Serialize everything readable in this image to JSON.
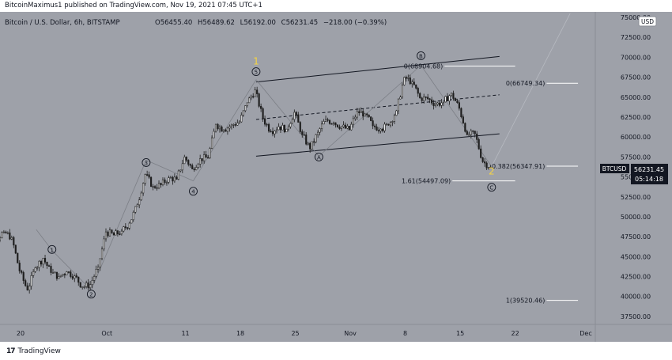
{
  "publish_note": "BitcoinMaximus1 published on TradingView.com, Nov 19, 2021 07:45 UTC+1",
  "footer": {
    "brand": "TradingView",
    "logo_mark": "17"
  },
  "symbol_header": {
    "title": "Bitcoin / U.S. Dollar, 6h, BITSTAMP",
    "open_label": "O",
    "open": "56455.40",
    "high_label": "H",
    "high": "56489.62",
    "low_label": "L",
    "low": "56192.00",
    "close_label": "C",
    "close": "56231.45",
    "change": "−218.00 (−0.39%)"
  },
  "price_axis": {
    "currency": "USD",
    "ticks": [
      "37500.00",
      "40000.00",
      "42500.00",
      "45000.00",
      "47500.00",
      "50000.00",
      "52500.00",
      "55000.00",
      "57500.00",
      "60000.00",
      "62500.00",
      "65000.00",
      "67500.00",
      "70000.00",
      "72500.00",
      "75000.00"
    ],
    "last_symbol": "BTCUSD",
    "last_price": "56231.45",
    "countdown": "05:14:18"
  },
  "time_axis": {
    "ticks": [
      "20",
      "Oct",
      "11",
      "18",
      "25",
      "Nov",
      "8",
      "15",
      "22",
      "Dec"
    ]
  },
  "fib_levels": [
    {
      "label": "0(68904.68)",
      "price": 68904.68
    },
    {
      "label": "0(66749.34)",
      "price": 66749.34
    },
    {
      "label": "0.382(56347.91)",
      "price": 56347.91
    },
    {
      "label": "1.61(54497.09)",
      "price": 54497.09
    },
    {
      "label": "1(39520.46)",
      "price": 39520.46
    }
  ],
  "wave_labels": [
    {
      "text": "1",
      "circled": true,
      "time": "Sep 24",
      "price": 45900
    },
    {
      "text": "2",
      "circled": true,
      "time": "Sep 29",
      "price": 40300
    },
    {
      "text": "3",
      "circled": true,
      "time": "Oct 6",
      "price": 56800
    },
    {
      "text": "4",
      "circled": true,
      "time": "Oct 12",
      "price": 53200
    },
    {
      "text": "5",
      "circled": true,
      "time": "Oct 20",
      "price": 68200
    },
    {
      "text": "A",
      "circled": true,
      "time": "Oct 28",
      "price": 57500
    },
    {
      "text": "B",
      "circled": true,
      "time": "Nov 10",
      "price": 70200
    },
    {
      "text": "C",
      "circled": true,
      "time": "Nov 19",
      "price": 53700
    },
    {
      "text": "1",
      "circled": false,
      "time": "Oct 20",
      "price": 69500,
      "color": "#f5d442"
    },
    {
      "text": "2",
      "circled": false,
      "time": "Nov 19",
      "price": 55700,
      "color": "#f5d442"
    }
  ],
  "colors": {
    "pane_bg": "#9ea1a9",
    "candle": "#1e1e1e",
    "text": "#131722",
    "highlight": "#f5d442"
  },
  "chart_data": {
    "type": "candlestick",
    "timeframe": "6h",
    "x_range": [
      "Sep 15, 2021",
      "Dec 3, 2021"
    ],
    "ylim": [
      36500,
      75700
    ],
    "grid": false,
    "legend": "none",
    "series": [
      {
        "kind": "ohlc",
        "points": [
          {
            "t": "Sep 15",
            "close": 48200
          },
          {
            "t": "Sep 16",
            "close": 47800
          },
          {
            "t": "Sep 17",
            "close": 47200
          },
          {
            "t": "Sep 18",
            "close": 48100
          },
          {
            "t": "Sep 19",
            "close": 47400
          },
          {
            "t": "Sep 20",
            "close": 43200
          },
          {
            "t": "Sep 21",
            "close": 40800
          },
          {
            "t": "Sep 22",
            "close": 43600
          },
          {
            "t": "Sep 23",
            "close": 44800
          },
          {
            "t": "Sep 24",
            "close": 43000
          },
          {
            "t": "Sep 25",
            "close": 42500
          },
          {
            "t": "Sep 26",
            "close": 43100
          },
          {
            "t": "Sep 27",
            "close": 42600
          },
          {
            "t": "Sep 28",
            "close": 41200
          },
          {
            "t": "Sep 29",
            "close": 41500
          },
          {
            "t": "Sep 30",
            "close": 43700
          },
          {
            "t": "Oct 1",
            "close": 48100
          },
          {
            "t": "Oct 2",
            "close": 47700
          },
          {
            "t": "Oct 3",
            "close": 48200
          },
          {
            "t": "Oct 4",
            "close": 49200
          },
          {
            "t": "Oct 5",
            "close": 51500
          },
          {
            "t": "Oct 6",
            "close": 55300
          },
          {
            "t": "Oct 7",
            "close": 53800
          },
          {
            "t": "Oct 8",
            "close": 54000
          },
          {
            "t": "Oct 9",
            "close": 54900
          },
          {
            "t": "Oct 10",
            "close": 54700
          },
          {
            "t": "Oct 11",
            "close": 57500
          },
          {
            "t": "Oct 12",
            "close": 56000
          },
          {
            "t": "Oct 13",
            "close": 57300
          },
          {
            "t": "Oct 14",
            "close": 57400
          },
          {
            "t": "Oct 15",
            "close": 61600
          },
          {
            "t": "Oct 16",
            "close": 60900
          },
          {
            "t": "Oct 17",
            "close": 61500
          },
          {
            "t": "Oct 18",
            "close": 61900
          },
          {
            "t": "Oct 19",
            "close": 64300
          },
          {
            "t": "Oct 20",
            "close": 65900
          },
          {
            "t": "Oct 21",
            "close": 62300
          },
          {
            "t": "Oct 22",
            "close": 60700
          },
          {
            "t": "Oct 23",
            "close": 61300
          },
          {
            "t": "Oct 24",
            "close": 61000
          },
          {
            "t": "Oct 25",
            "close": 63100
          },
          {
            "t": "Oct 26",
            "close": 60300
          },
          {
            "t": "Oct 27",
            "close": 58500
          },
          {
            "t": "Oct 28",
            "close": 60600
          },
          {
            "t": "Oct 29",
            "close": 62200
          },
          {
            "t": "Oct 30",
            "close": 61800
          },
          {
            "t": "Oct 31",
            "close": 61300
          },
          {
            "t": "Nov 1",
            "close": 60900
          },
          {
            "t": "Nov 2",
            "close": 63200
          },
          {
            "t": "Nov 3",
            "close": 62900
          },
          {
            "t": "Nov 4",
            "close": 61400
          },
          {
            "t": "Nov 5",
            "close": 61000
          },
          {
            "t": "Nov 6",
            "close": 61500
          },
          {
            "t": "Nov 7",
            "close": 63300
          },
          {
            "t": "Nov 8",
            "close": 67500
          },
          {
            "t": "Nov 9",
            "close": 66900
          },
          {
            "t": "Nov 10",
            "close": 64900
          },
          {
            "t": "Nov 11",
            "close": 64800
          },
          {
            "t": "Nov 12",
            "close": 64100
          },
          {
            "t": "Nov 13",
            "close": 64400
          },
          {
            "t": "Nov 14",
            "close": 65500
          },
          {
            "t": "Nov 15",
            "close": 63600
          },
          {
            "t": "Nov 16",
            "close": 60300
          },
          {
            "t": "Nov 17",
            "close": 60400
          },
          {
            "t": "Nov 18",
            "close": 56900
          },
          {
            "t": "Nov 19",
            "close": 56231
          }
        ]
      }
    ]
  }
}
